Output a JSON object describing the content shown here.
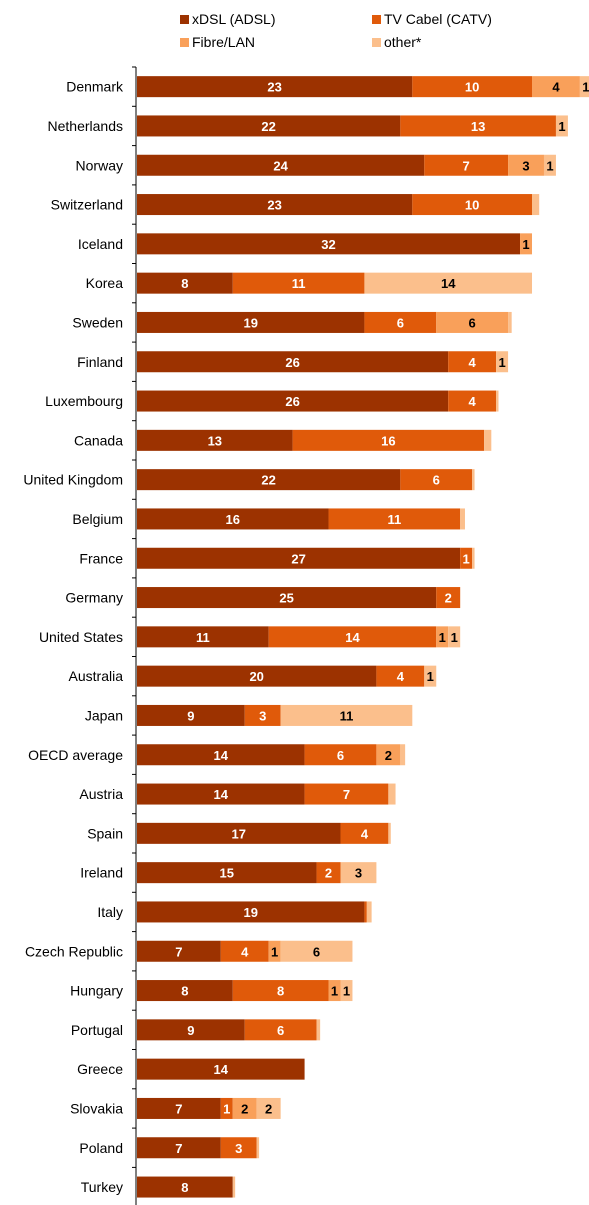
{
  "chart_data": {
    "type": "bar",
    "orientation": "horizontal",
    "stacked": true,
    "legend_position": "top",
    "grid": false,
    "categories": [
      "Denmark",
      "Netherlands",
      "Norway",
      "Switzerland",
      "Iceland",
      "Korea",
      "Sweden",
      "Finland",
      "Luxembourg",
      "Canada",
      "United Kingdom",
      "Belgium",
      "France",
      "Germany",
      "United States",
      "Australia",
      "Japan",
      "OECD average",
      "Austria",
      "Spain",
      "Ireland",
      "Italy",
      "Czech Republic",
      "Hungary",
      "Portugal",
      "Greece",
      "Slovakia",
      "Poland",
      "Turkey"
    ],
    "series": [
      {
        "name": "xDSL (ADSL)",
        "color": "#9c3200",
        "values": [
          23,
          22,
          24,
          23,
          32,
          8,
          19,
          26,
          26,
          13,
          22,
          16,
          27,
          25,
          11,
          20,
          9,
          14,
          14,
          17,
          15,
          19,
          7,
          8,
          9,
          14,
          7,
          7,
          8
        ]
      },
      {
        "name": "TV Cabel (CATV)",
        "color": "#e05a0a",
        "values": [
          10,
          13,
          7,
          10,
          0,
          11,
          6,
          4,
          4,
          16,
          6,
          11,
          1,
          2,
          14,
          4,
          3,
          6,
          7,
          4,
          2,
          0.2,
          4,
          8,
          6,
          0,
          1,
          3,
          0
        ]
      },
      {
        "name": "Fibre/LAN",
        "color": "#f9a05a",
        "values": [
          4,
          0,
          3,
          0,
          1,
          0,
          6,
          0,
          0,
          0,
          0,
          0,
          0,
          0,
          1,
          0,
          0,
          2,
          0,
          0,
          0,
          0,
          1,
          1,
          0,
          0,
          2,
          0,
          0
        ]
      },
      {
        "name": "other*",
        "color": "#fbbf8c",
        "values": [
          1,
          1,
          1,
          0.6,
          0,
          14,
          0.3,
          1,
          0.2,
          0.6,
          0.2,
          0.4,
          0.2,
          0,
          1,
          1,
          11,
          0.4,
          0.6,
          0.2,
          3,
          0.4,
          6,
          1,
          0.3,
          0,
          2,
          0.2,
          0.2
        ]
      }
    ],
    "xlim": [
      0,
      38
    ]
  }
}
